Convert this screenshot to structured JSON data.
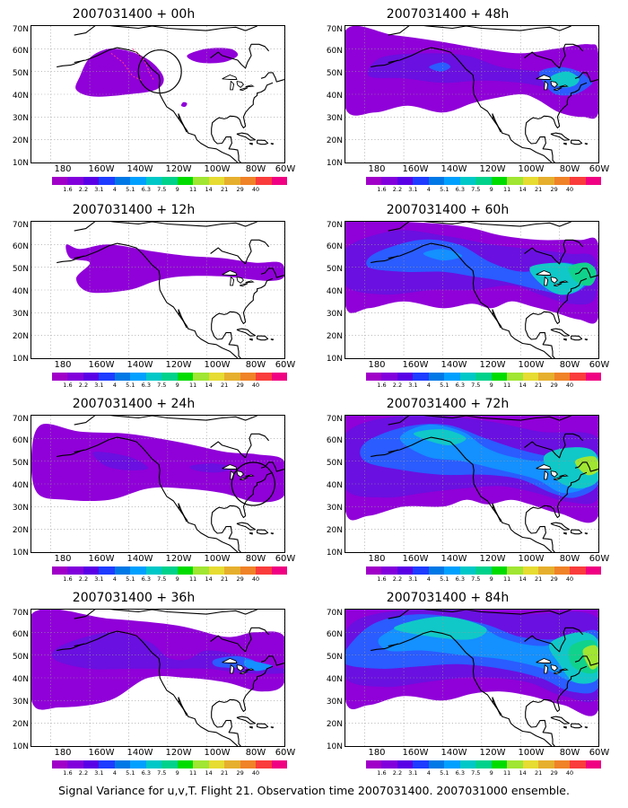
{
  "panels": [
    {
      "id": "p00",
      "title": "2007031400 + 00h",
      "lead_h": 0,
      "has_circle": true,
      "circle_location": "west-coast"
    },
    {
      "id": "p12",
      "title": "2007031400 + 12h",
      "lead_h": 12,
      "has_circle": false
    },
    {
      "id": "p24",
      "title": "2007031400 + 24h",
      "lead_h": 24,
      "has_circle": true,
      "circle_location": "east-coast"
    },
    {
      "id": "p36",
      "title": "2007031400 + 36h",
      "lead_h": 36,
      "has_circle": false
    },
    {
      "id": "p48",
      "title": "2007031400 + 48h",
      "lead_h": 48,
      "has_circle": false
    },
    {
      "id": "p60",
      "title": "2007031400 + 60h",
      "lead_h": 60,
      "has_circle": false
    },
    {
      "id": "p72",
      "title": "2007031400 + 72h",
      "lead_h": 72,
      "has_circle": false
    },
    {
      "id": "p84",
      "title": "2007031400 + 84h",
      "lead_h": 84,
      "has_circle": false
    }
  ],
  "axes": {
    "lat_labels": [
      "70N",
      "60N",
      "50N",
      "40N",
      "30N",
      "20N",
      "10N"
    ],
    "lon_labels": [
      "180",
      "160W",
      "140W",
      "120W",
      "100W",
      "80W",
      "60W"
    ],
    "lat_range": [
      10,
      70
    ],
    "lon_range": [
      -190,
      -60
    ],
    "grid": "dotted"
  },
  "colorbar": {
    "labels": [
      "1.6",
      "2.2",
      "3.1",
      "4",
      "5.1",
      "6.3",
      "7.5",
      "9",
      "11",
      "14",
      "21",
      "29",
      "40"
    ],
    "colors": [
      "#a000c8",
      "#8200dc",
      "#5a00e6",
      "#1e3cff",
      "#0078e6",
      "#00a0ff",
      "#00c8c8",
      "#00d28c",
      "#00dc00",
      "#a0e632",
      "#e6dc32",
      "#e6af2d",
      "#f08228",
      "#fa3c3c",
      "#f00082"
    ]
  },
  "caption": "Signal Variance for u,v,T. Flight 21. Observation time 2007031400. 2007031000 ensemble."
}
